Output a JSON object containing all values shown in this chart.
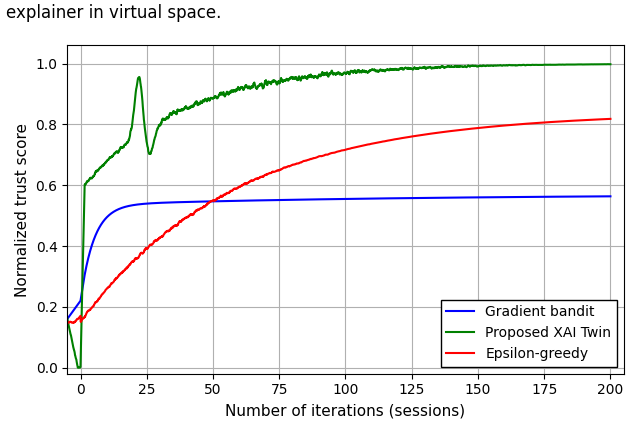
{
  "title_top": "explainer in virtual space.",
  "xlabel": "Number of iterations (sessions)",
  "ylabel": "Normalized trust score",
  "xlim": [
    -5,
    205
  ],
  "ylim": [
    -0.02,
    1.06
  ],
  "xticks": [
    0,
    25,
    50,
    75,
    100,
    125,
    150,
    175,
    200
  ],
  "yticks": [
    0.0,
    0.2,
    0.4,
    0.6,
    0.8,
    1.0
  ],
  "legend": [
    "Gradient bandit",
    "Proposed XAI Twin",
    "Epsilon-greedy"
  ],
  "colors": {
    "gradient_bandit": "#0000ff",
    "proposed_xai": "#008000",
    "epsilon_greedy": "#ff0000"
  },
  "background_color": "white",
  "grid_color": "#b0b0b0"
}
